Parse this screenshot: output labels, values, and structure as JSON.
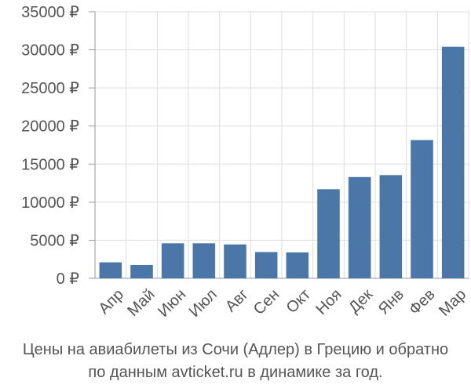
{
  "chart_data": {
    "type": "bar",
    "categories": [
      "Апр",
      "Май",
      "Июн",
      "Июл",
      "Авг",
      "Сен",
      "Окт",
      "Ноя",
      "Дек",
      "Янв",
      "Фев",
      "Мар"
    ],
    "values": [
      2100,
      1750,
      4600,
      4600,
      4450,
      3450,
      3400,
      11700,
      13300,
      13550,
      18150,
      30400
    ],
    "y_ticks": [
      "0 ₽",
      "5000 ₽",
      "10000 ₽",
      "15000 ₽",
      "20000 ₽",
      "25000 ₽",
      "30000 ₽",
      "35000 ₽"
    ],
    "ylim": [
      0,
      35000
    ],
    "grid": true,
    "bar_color": "#4a76a8",
    "grid_color": "#dddddd",
    "text_color": "#555555"
  },
  "caption": {
    "line1": "Цены на авиабилеты из Сочи (Адлер) в Грецию и обратно",
    "line2": "по данным avticket.ru в динамике за год."
  }
}
